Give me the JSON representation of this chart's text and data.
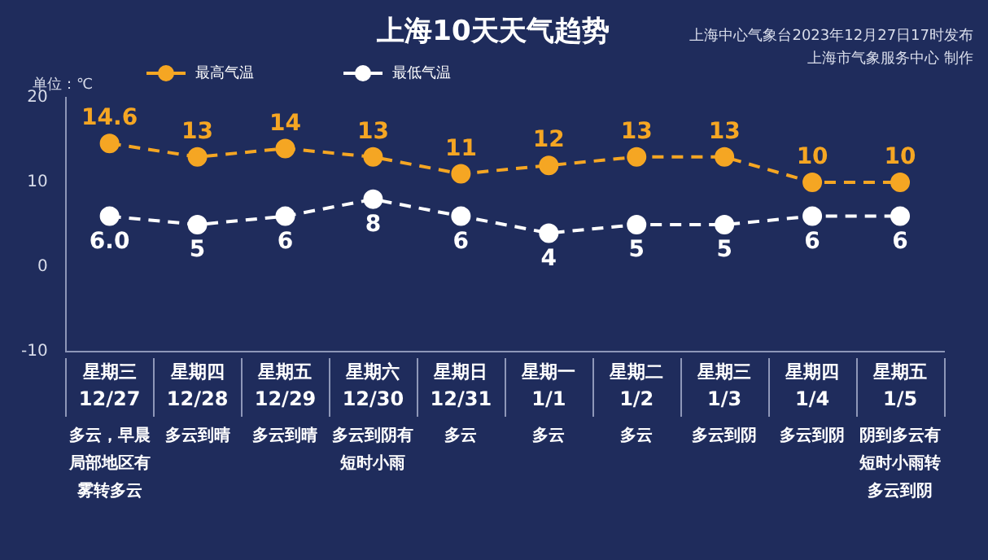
{
  "chart_data": {
    "type": "line",
    "title": "上海10天天气趋势",
    "ylabel": "单位：℃",
    "annotations": [
      "上海中心气象台2023年12月27日17时发布",
      "上海市气象服务中心 制作"
    ],
    "categories": [
      "星期三\n12/27\n多云，早晨局部地区有雾转多云",
      "星期四\n12/28\n多云到晴",
      "星期五\n12/29\n多云到晴",
      "星期六\n12/30\n多云到阴有短时小雨",
      "星期日\n12/31\n多云",
      "星期一\n1/1\n多云",
      "星期二\n1/2\n多云",
      "星期三\n1/3\n多云到阴",
      "星期四\n1/4\n多云到阴",
      "星期五\n1/5\n阴到多云有短时小雨转多云到阴"
    ],
    "series": [
      {
        "name": "最高气温",
        "color": "#f5a623",
        "values": [
          14.6,
          13,
          14,
          13,
          11,
          12,
          13,
          13,
          10,
          10
        ],
        "value_labels": [
          "14.6",
          "13",
          "14",
          "13",
          "11",
          "12",
          "13",
          "13",
          "10",
          "10"
        ]
      },
      {
        "name": "最低气温",
        "color": "#ffffff",
        "values": [
          6.0,
          5,
          6,
          8,
          6,
          4,
          5,
          5,
          6,
          6
        ],
        "value_labels": [
          "6.0",
          "5",
          "6",
          "8",
          "6",
          "4",
          "5",
          "5",
          "6",
          "6"
        ]
      }
    ],
    "ylim": [
      -10,
      20
    ],
    "yticks": [
      -10,
      0,
      10,
      20
    ],
    "grid": false,
    "legend": "top",
    "marker": "circle",
    "line_style": "dashed"
  }
}
